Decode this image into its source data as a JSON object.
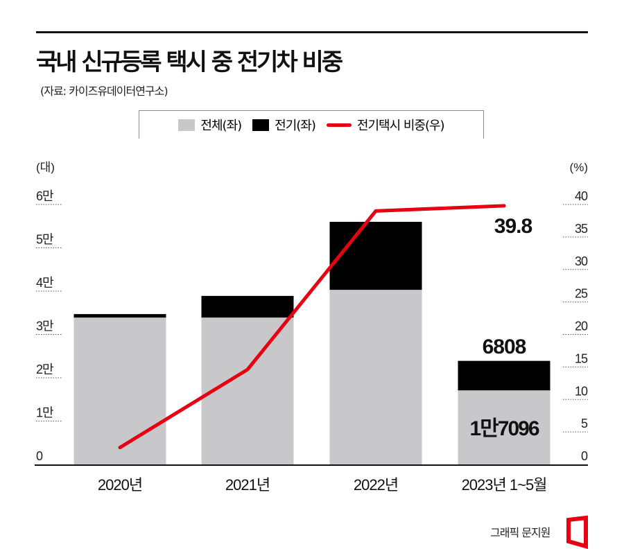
{
  "header": {
    "title": "국내 신규등록 택시 중 전기차 비중",
    "source": "(자료: 카이즈유데이터연구소)"
  },
  "footer": {
    "credit": "그래픽 문지원"
  },
  "colors": {
    "total": "#c8c8ca",
    "electric": "#000000",
    "share_line": "#e60012"
  },
  "chart_data": {
    "type": "bar",
    "title": "국내 신규등록 택시 중 전기차 비중",
    "categories": [
      "2020년",
      "2021년",
      "2022년",
      "2023년 1~5월"
    ],
    "series": [
      {
        "name": "전체(좌)",
        "type": "bar",
        "axis": "left",
        "values": [
          33900,
          33900,
          40300,
          17096
        ]
      },
      {
        "name": "전기(좌)",
        "type": "bar",
        "axis": "left",
        "stacked": true,
        "values": [
          800,
          5000,
          15700,
          6808
        ]
      },
      {
        "name": "전기택시 비중(우)",
        "type": "line",
        "axis": "right",
        "values": [
          2.6,
          14.6,
          39.0,
          39.8
        ]
      }
    ],
    "legend": [
      "전체(좌)",
      "전기(좌)",
      "전기택시 비중(우)"
    ],
    "legend_position": "top-center",
    "left_axis": {
      "unit": "(대)",
      "ylim": [
        0,
        60000
      ],
      "ticks": [
        0,
        10000,
        20000,
        30000,
        40000,
        50000,
        60000
      ],
      "tick_labels": [
        "0",
        "1만",
        "2만",
        "3만",
        "4만",
        "5만",
        "6만"
      ]
    },
    "right_axis": {
      "unit": "(%)",
      "ylim": [
        0,
        40
      ],
      "ticks": [
        0,
        5,
        10,
        15,
        20,
        25,
        30,
        35,
        40
      ],
      "tick_labels": [
        "0",
        "5",
        "10",
        "15",
        "20",
        "25",
        "30",
        "35",
        "40"
      ]
    },
    "annotations": {
      "line_last": "39.8",
      "electric_last": "6808",
      "total_last": "1만7096"
    }
  }
}
